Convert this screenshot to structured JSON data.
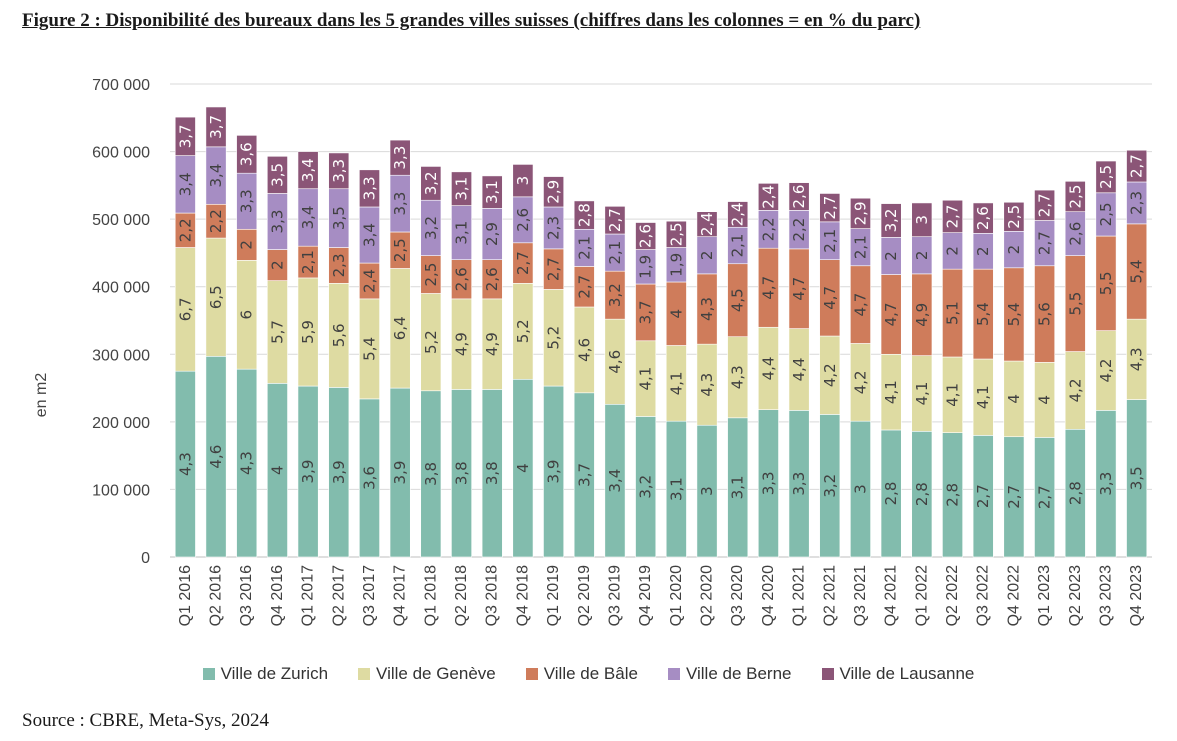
{
  "title": "Figure 2 : Disponibilité des bureaux dans les 5 grandes villes suisses (chiffres dans les colonnes = en % du parc)",
  "source": "Source : CBRE, Meta-Sys, 2024",
  "chart_data": {
    "type": "bar",
    "stacked": true,
    "ylabel": "en m2",
    "ylim": [
      0,
      700000
    ],
    "yticks": [
      "0",
      "100 000",
      "200 000",
      "300 000",
      "400 000",
      "500 000",
      "600 000",
      "700 000"
    ],
    "grid": true,
    "legend_position": "bottom",
    "categories": [
      "Q1 2016",
      "Q2 2016",
      "Q3 2016",
      "Q4 2016",
      "Q1 2017",
      "Q2 2017",
      "Q3 2017",
      "Q4 2017",
      "Q1 2018",
      "Q2 2018",
      "Q3 2018",
      "Q4 2018",
      "Q1 2019",
      "Q2 2019",
      "Q3 2019",
      "Q4 2019",
      "Q1 2020",
      "Q2 2020",
      "Q3 2020",
      "Q4 2020",
      "Q1 2021",
      "Q2 2021",
      "Q3 2021",
      "Q4 2021",
      "Q1 2022",
      "Q2 2022",
      "Q3 2022",
      "Q4 2022",
      "Q1 2023",
      "Q2 2023",
      "Q3 2023",
      "Q4 2023"
    ],
    "series": [
      {
        "name": "Ville de Zurich",
        "color": "#82bcad",
        "values": [
          275000,
          297000,
          278000,
          257000,
          253000,
          251000,
          234000,
          250000,
          246000,
          248000,
          248000,
          263000,
          253000,
          243000,
          226000,
          208000,
          201000,
          195000,
          206000,
          218000,
          217000,
          211000,
          201000,
          188000,
          186000,
          184000,
          180000,
          178000,
          177000,
          189000,
          217000,
          233000
        ],
        "labels": [
          "4,3",
          "4,6",
          "4,3",
          "4",
          "3,9",
          "3,9",
          "3,6",
          "3,9",
          "3,8",
          "3,8",
          "3,8",
          "4",
          "3,9",
          "3,7",
          "3,4",
          "3,2",
          "3,1",
          "3",
          "3,1",
          "3,3",
          "3,3",
          "3,2",
          "3",
          "2,8",
          "2,8",
          "2,8",
          "2,7",
          "2,7",
          "2,7",
          "2,8",
          "3,3",
          "3,5"
        ]
      },
      {
        "name": "Ville de Genève",
        "color": "#dedba2",
        "values": [
          183000,
          175000,
          161000,
          152000,
          160000,
          154000,
          148000,
          177000,
          144000,
          134000,
          134000,
          142000,
          143000,
          127000,
          126000,
          112000,
          112000,
          120000,
          120000,
          122000,
          121000,
          116000,
          115000,
          112000,
          112000,
          112000,
          113000,
          112000,
          111000,
          115000,
          118000,
          119000
        ],
        "labels": [
          "6,7",
          "6,5",
          "6",
          "5,7",
          "5,9",
          "5,6",
          "5,4",
          "6,4",
          "5,2",
          "4,9",
          "4,9",
          "5,2",
          "5,2",
          "4,6",
          "4,6",
          "4,1",
          "4,1",
          "4,3",
          "4,3",
          "4,4",
          "4,4",
          "4,2",
          "4,2",
          "4,1",
          "4,1",
          "4,1",
          "4,1",
          "4",
          "4",
          "4,2",
          "4,2",
          "4,3"
        ]
      },
      {
        "name": "Ville de Bâle",
        "color": "#cf7c5b",
        "values": [
          51000,
          50000,
          46000,
          46000,
          47000,
          53000,
          53000,
          54000,
          56000,
          58000,
          58000,
          60000,
          60000,
          60000,
          71000,
          84000,
          94000,
          104000,
          108000,
          117000,
          118000,
          113000,
          115000,
          118000,
          121000,
          130000,
          133000,
          138000,
          143000,
          142000,
          140000,
          141000
        ],
        "labels": [
          "2,2",
          "2,2",
          "2",
          "2",
          "2,1",
          "2,3",
          "2,4",
          "2,5",
          "2,5",
          "2,6",
          "2,6",
          "2,7",
          "2,7",
          "2,7",
          "3,2",
          "3,7",
          "4",
          "4,3",
          "4,5",
          "4,7",
          "4,7",
          "4,7",
          "4,7",
          "4,7",
          "4,9",
          "5,1",
          "5,4",
          "5,4",
          "5,6",
          "5,5",
          "5,5",
          "5,4"
        ]
      },
      {
        "name": "Ville de Berne",
        "color": "#a68dc3",
        "values": [
          85000,
          85000,
          83000,
          83000,
          85000,
          87000,
          83000,
          84000,
          82000,
          80000,
          76000,
          68000,
          62000,
          55000,
          55000,
          51000,
          51000,
          55000,
          54000,
          56000,
          57000,
          56000,
          55000,
          55000,
          55000,
          54000,
          53000,
          54000,
          67000,
          65000,
          64000,
          62000
        ],
        "labels": [
          "3,4",
          "3,4",
          "3,3",
          "3,3",
          "3,4",
          "3,5",
          "3,4",
          "3,3",
          "3,2",
          "3,1",
          "2,9",
          "2,6",
          "2,3",
          "2,1",
          "2,1",
          "1,9",
          "1,9",
          "2",
          "2,1",
          "2,2",
          "2,2",
          "2,1",
          "2,1",
          "2",
          "2",
          "2",
          "2",
          "2",
          "2,7",
          "2,6",
          "2,5",
          "2,3"
        ]
      },
      {
        "name": "Ville de Lausanne",
        "color": "#8b5577",
        "values": [
          57000,
          59000,
          56000,
          55000,
          55000,
          53000,
          55000,
          52000,
          50000,
          50000,
          48000,
          48000,
          45000,
          42000,
          41000,
          40000,
          39000,
          37000,
          38000,
          40000,
          41000,
          42000,
          45000,
          50000,
          50000,
          48000,
          45000,
          43000,
          45000,
          45000,
          47000,
          47000
        ],
        "labels": [
          "3,7",
          "3,7",
          "3,6",
          "3,5",
          "3,4",
          "3,3",
          "3,3",
          "3,3",
          "3,2",
          "3,1",
          "3,1",
          "3",
          "2,9",
          "2,8",
          "2,7",
          "2,6",
          "2,5",
          "2,4",
          "2,4",
          "2,4",
          "2,6",
          "2,7",
          "2,9",
          "3,2",
          "3",
          "2,7",
          "2,6",
          "2,5",
          "2,7",
          "2,5",
          "2,5",
          "2,7"
        ]
      }
    ]
  }
}
